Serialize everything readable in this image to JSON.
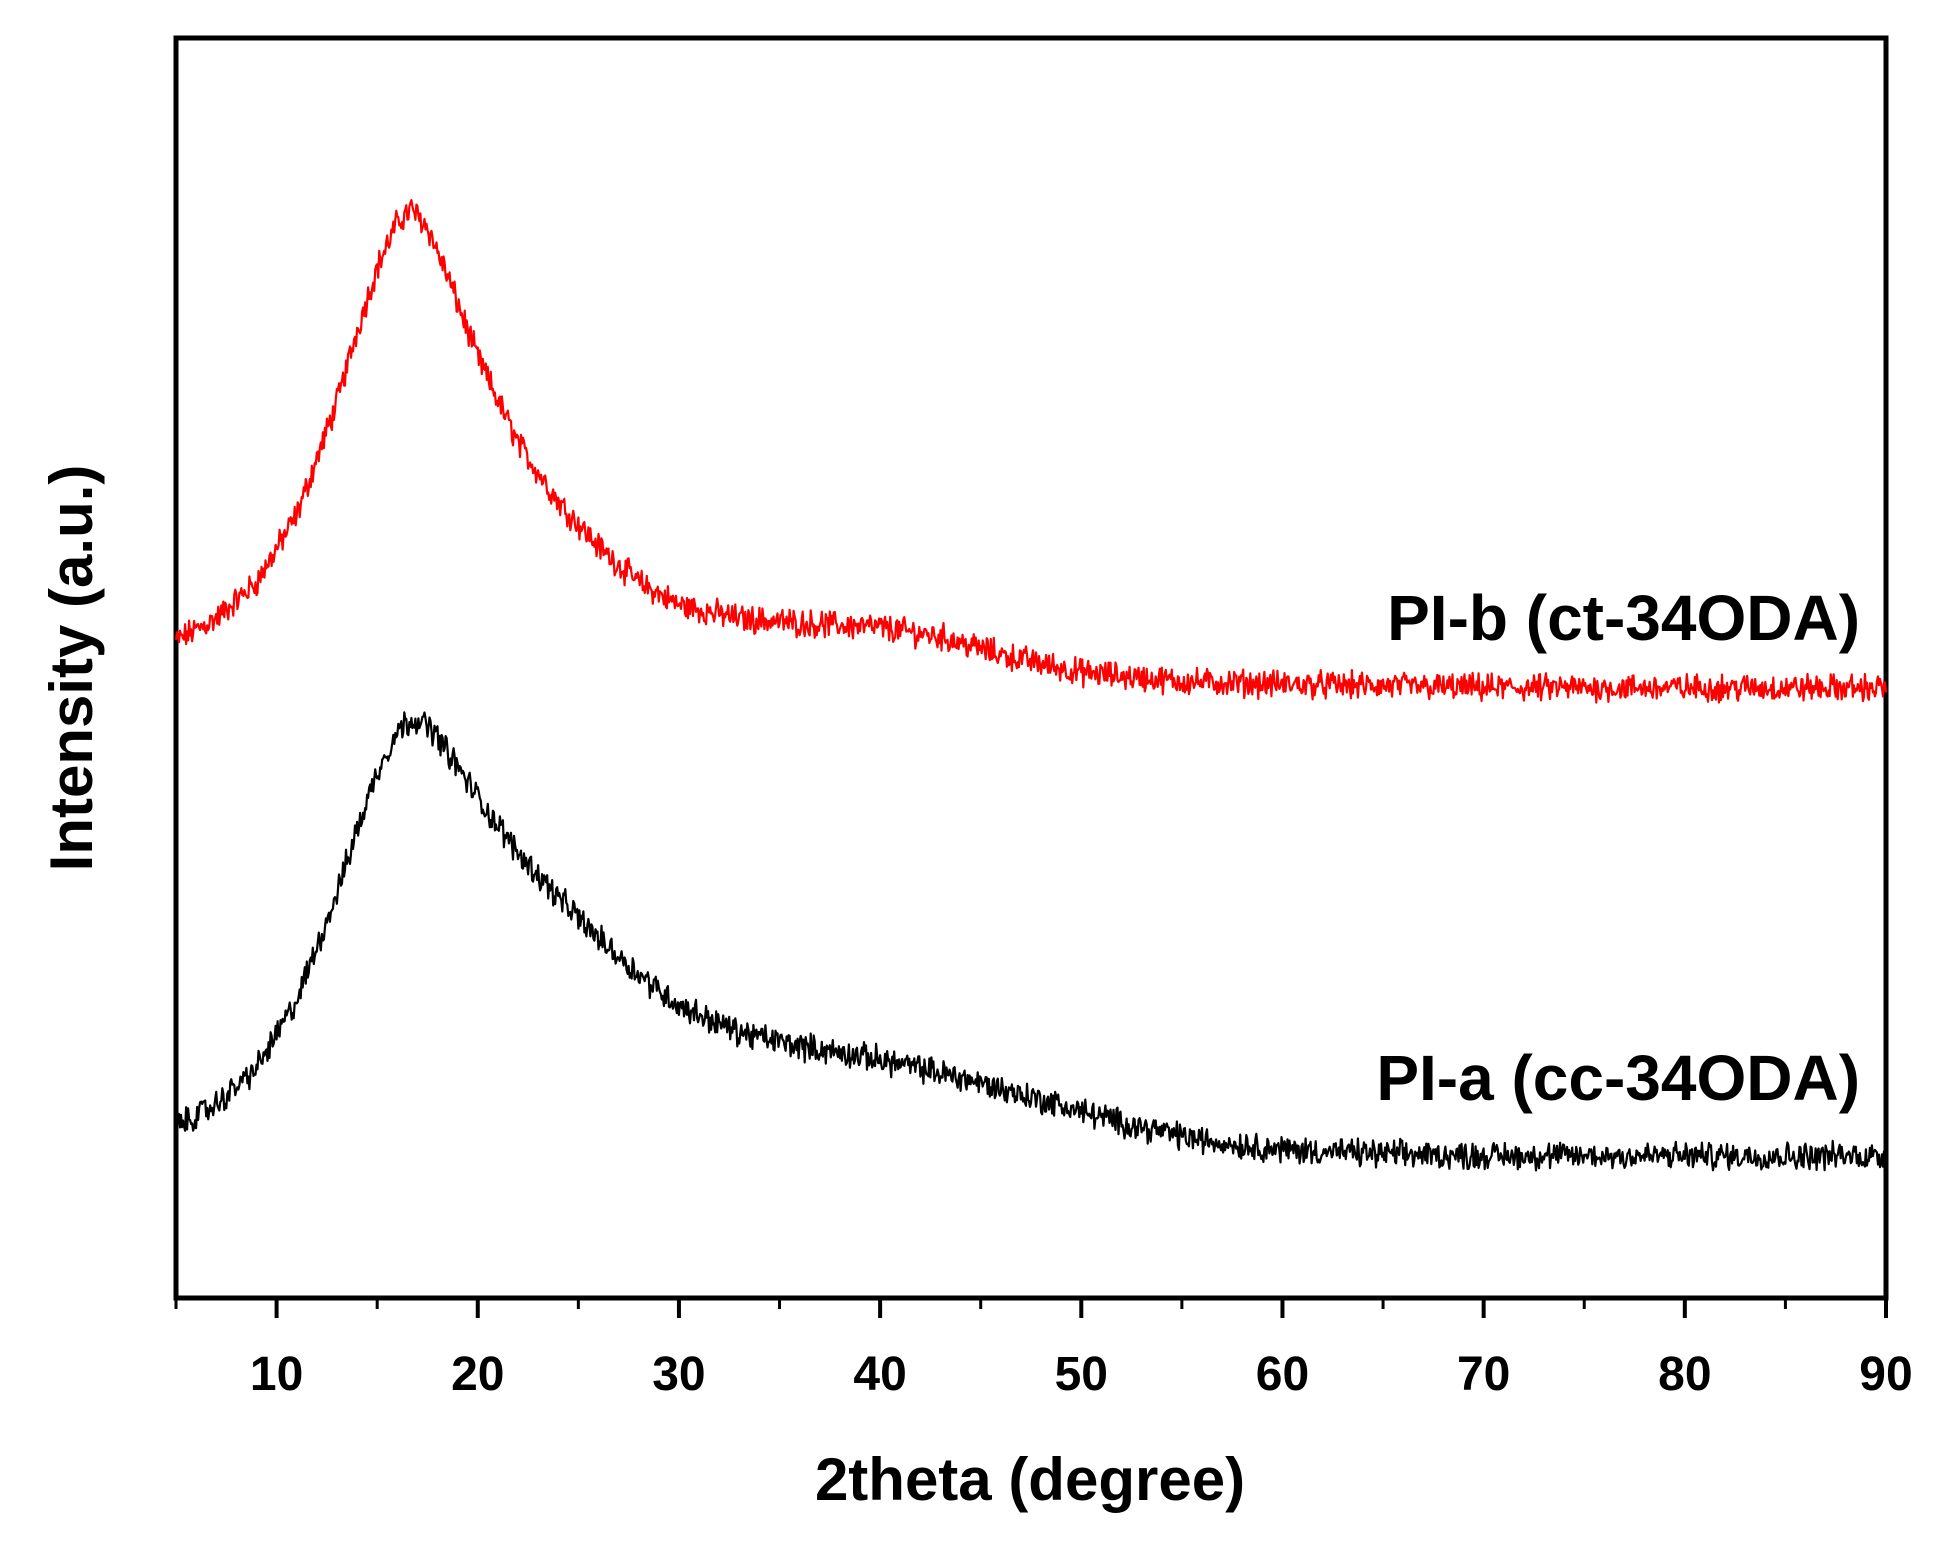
{
  "chart_data": {
    "type": "line",
    "title": "",
    "xlabel": "2theta (degree)",
    "ylabel": "Intensity (a.u.)",
    "xlim": [
      5,
      90
    ],
    "ylim": [
      0,
      14
    ],
    "xticks": [
      10,
      20,
      30,
      40,
      50,
      60,
      70,
      80,
      90
    ],
    "xtick_labels": [
      "10",
      "20",
      "30",
      "40",
      "50",
      "60",
      "70",
      "80",
      "90"
    ],
    "minor_xticks": [
      5,
      15,
      25,
      35,
      45,
      55,
      65,
      75,
      85
    ],
    "yticks": [],
    "grid": false,
    "legend": "none (curves labeled directly)",
    "series": [
      {
        "name": "PI-b (ct-34ODA)",
        "label": "PI-b (ct-34ODA)",
        "color": "#ff0000",
        "noise": 0.12,
        "x": [
          5,
          7,
          9,
          11,
          13,
          14,
          15,
          16,
          16.7,
          17.5,
          18.5,
          20,
          22,
          24,
          26,
          28,
          30,
          33,
          36,
          40,
          43,
          46,
          50,
          55,
          60,
          65,
          70,
          75,
          80,
          85,
          90
        ],
        "y": [
          7.3,
          7.55,
          7.95,
          8.7,
          9.95,
          10.75,
          11.45,
          11.95,
          12.1,
          11.9,
          11.35,
          10.45,
          9.5,
          8.85,
          8.35,
          7.95,
          7.7,
          7.55,
          7.5,
          7.45,
          7.35,
          7.15,
          6.95,
          6.85,
          6.82,
          6.8,
          6.78,
          6.78,
          6.78,
          6.78,
          6.78
        ]
      },
      {
        "name": "PI-a (cc-34ODA)",
        "label": "PI-a (cc-34ODA)",
        "color": "#000000",
        "noise": 0.12,
        "x": [
          5,
          7,
          9,
          11,
          13,
          14,
          15,
          16,
          16.8,
          17.8,
          19,
          20.5,
          22,
          24,
          26,
          28,
          30,
          33,
          36,
          40,
          44,
          48,
          52,
          56,
          60,
          65,
          70,
          75,
          80,
          85,
          90
        ],
        "y": [
          1.9,
          2.15,
          2.55,
          3.3,
          4.5,
          5.2,
          5.85,
          6.3,
          6.45,
          6.3,
          5.9,
          5.4,
          4.95,
          4.45,
          4.0,
          3.6,
          3.25,
          2.95,
          2.8,
          2.65,
          2.45,
          2.2,
          1.95,
          1.75,
          1.65,
          1.6,
          1.58,
          1.58,
          1.58,
          1.58,
          1.58
        ]
      }
    ]
  }
}
